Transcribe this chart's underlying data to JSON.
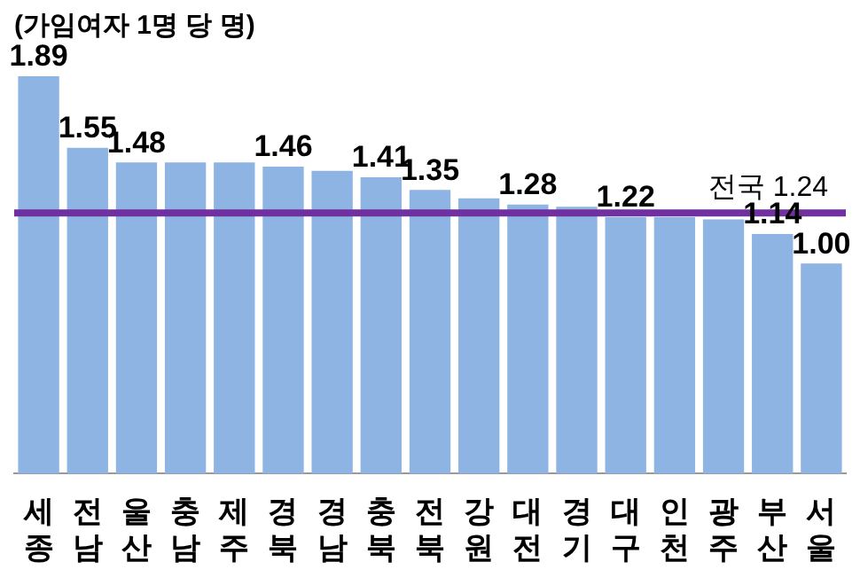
{
  "chart_data": {
    "type": "bar",
    "ylabel": "(가임여자 1명 당 명)",
    "categories": [
      "세종",
      "전남",
      "울산",
      "충남",
      "제주",
      "경북",
      "경남",
      "충북",
      "전북",
      "강원",
      "대전",
      "경기",
      "대구",
      "인천",
      "광주",
      "부산",
      "서울"
    ],
    "values": [
      1.89,
      1.55,
      1.48,
      1.48,
      1.48,
      1.46,
      1.44,
      1.41,
      1.35,
      1.31,
      1.28,
      1.27,
      1.22,
      1.22,
      1.21,
      1.14,
      1.0
    ],
    "value_labels": [
      "1.89",
      "1.55",
      "1.48",
      null,
      null,
      "1.46",
      null,
      "1.41",
      "1.35",
      null,
      "1.28",
      null,
      "1.22",
      null,
      null,
      "1.14",
      "1.00"
    ],
    "color": "#8eb4e3",
    "tick_labels": "x",
    "grid": false,
    "legend": false,
    "ref_lines": [
      {
        "axis": "y",
        "value": 1.24,
        "label": "전국 1.24",
        "color": "#7030a0"
      }
    ]
  }
}
